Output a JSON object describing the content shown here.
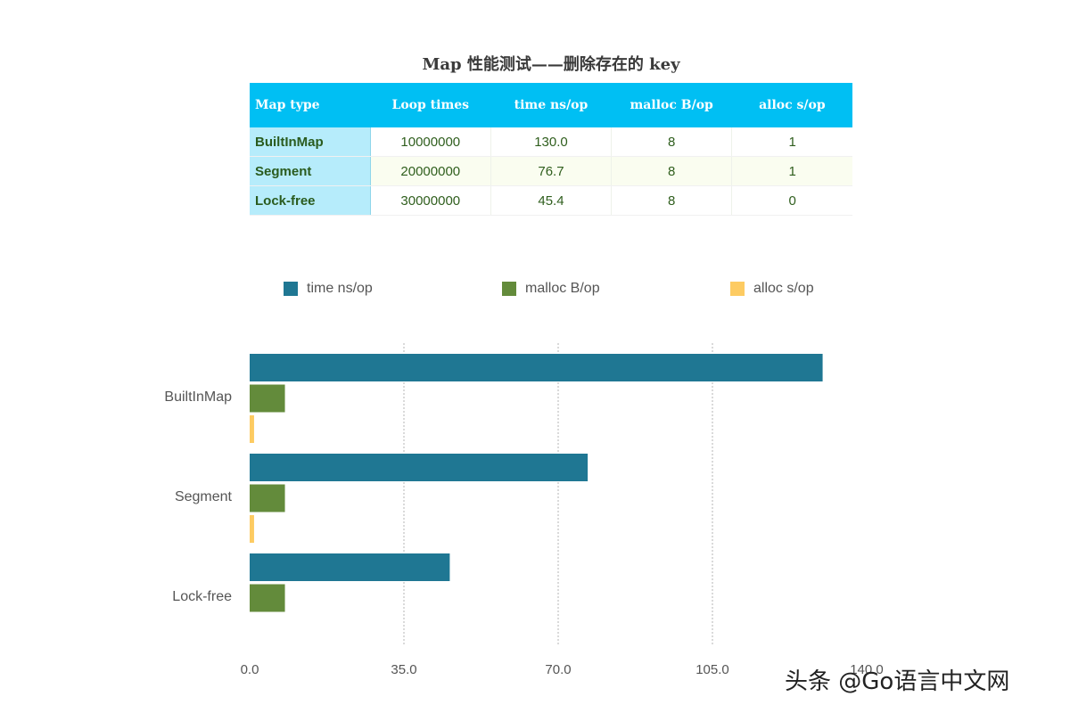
{
  "title": "Map 性能测试——删除存在的 key",
  "table": {
    "headers": [
      "Map type",
      "Loop times",
      "time ns/op",
      "malloc B/op",
      "alloc s/op"
    ],
    "rows": [
      [
        "BuiltInMap",
        "10000000",
        "130.0",
        "8",
        "1"
      ],
      [
        "Segment",
        "20000000",
        "76.7",
        "8",
        "1"
      ],
      [
        "Lock-free",
        "30000000",
        "45.4",
        "8",
        "0"
      ]
    ]
  },
  "chart_data": {
    "type": "bar",
    "orientation": "horizontal",
    "categories": [
      "BuiltInMap",
      "Segment",
      "Lock-free"
    ],
    "series": [
      {
        "name": "time ns/op",
        "values": [
          130.0,
          76.7,
          45.4
        ],
        "color": "#1f7793"
      },
      {
        "name": "malloc B/op",
        "values": [
          8,
          8,
          8
        ],
        "color": "#638b3b"
      },
      {
        "name": "alloc s/op",
        "values": [
          1,
          1,
          0
        ],
        "color": "#fdcb62"
      }
    ],
    "xlim": [
      0,
      140
    ],
    "xticks": [
      "0.0",
      "35.0",
      "70.0",
      "105.0",
      "140.0"
    ],
    "grid": true,
    "legend": "top"
  },
  "watermark": "头条 @Go语言中文网"
}
